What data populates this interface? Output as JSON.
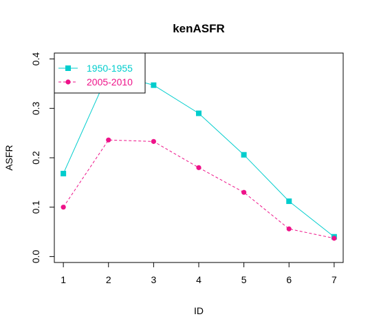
{
  "chart_data": {
    "type": "line",
    "title": "kenASFR",
    "xlabel": "ID",
    "ylabel": "ASFR",
    "xlim": [
      0.8,
      7.2
    ],
    "ylim": [
      -0.012,
      0.412
    ],
    "xticks": [
      1,
      2,
      3,
      4,
      5,
      6,
      7
    ],
    "yticks": [
      0.0,
      0.1,
      0.2,
      0.3,
      0.4
    ],
    "ytick_labels": [
      "0.0",
      "0.1",
      "0.2",
      "0.3",
      "0.4"
    ],
    "legend_position": "top-left",
    "grid": false,
    "x": [
      1,
      2,
      3,
      4,
      5,
      6,
      7
    ],
    "series": [
      {
        "name": "1950-1955",
        "color": "#00CDCD",
        "line_style": "solid",
        "marker": "square",
        "values": [
          0.168,
          0.372,
          0.347,
          0.29,
          0.206,
          0.112,
          0.04
        ]
      },
      {
        "name": "2005-2010",
        "color": "#EE1289",
        "line_style": "dashed",
        "marker": "circle",
        "values": [
          0.1,
          0.236,
          0.233,
          0.18,
          0.13,
          0.056,
          0.037
        ]
      }
    ]
  }
}
